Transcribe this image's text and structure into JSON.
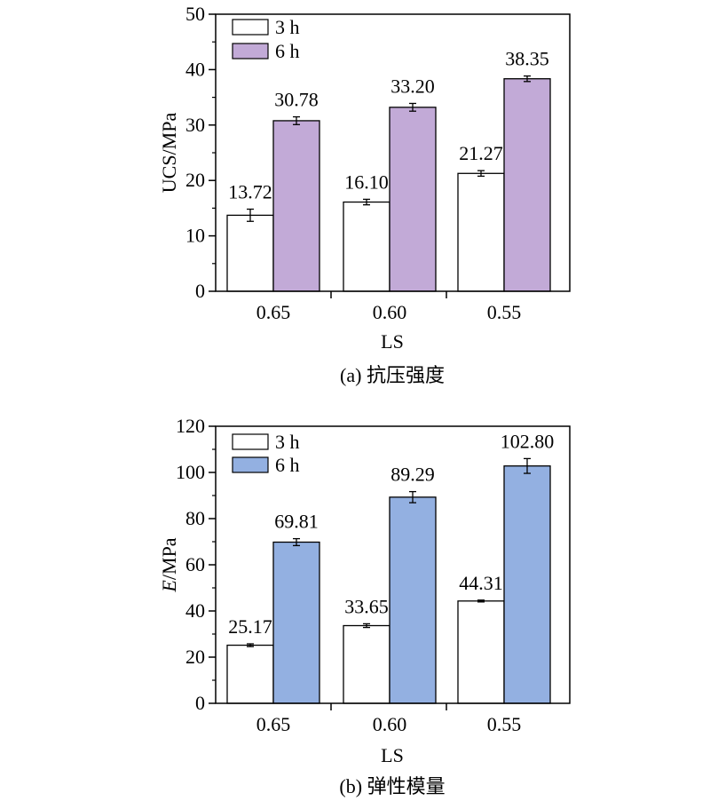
{
  "chart_data": [
    {
      "type": "bar",
      "categories": [
        "0.65",
        "0.60",
        "0.55"
      ],
      "series": [
        {
          "name": "3 h",
          "values": [
            13.72,
            16.1,
            21.27
          ],
          "labels": [
            "13.72",
            "16.10",
            "21.27"
          ],
          "errors": [
            1.1,
            0.5,
            0.5
          ],
          "color": "#ffffff"
        },
        {
          "name": "6 h",
          "values": [
            30.78,
            33.2,
            38.35
          ],
          "labels": [
            "30.78",
            "33.20",
            "38.35"
          ],
          "errors": [
            0.7,
            0.7,
            0.5
          ],
          "color": "#c2aad7"
        }
      ],
      "xlabel": "LS",
      "ylabel": "UCS/MPa",
      "ylim": [
        0,
        50
      ],
      "yticks": [
        "0",
        "10",
        "20",
        "30",
        "40",
        "50"
      ],
      "legend_position": "top-left",
      "caption": "(a) 抗压强度"
    },
    {
      "type": "bar",
      "categories": [
        "0.65",
        "0.60",
        "0.55"
      ],
      "series": [
        {
          "name": "3 h",
          "values": [
            25.17,
            33.65,
            44.31
          ],
          "labels": [
            "25.17",
            "33.65",
            "44.31"
          ],
          "errors": [
            0.6,
            0.8,
            0.4
          ],
          "color": "#ffffff"
        },
        {
          "name": "6 h",
          "values": [
            69.81,
            89.29,
            102.8
          ],
          "labels": [
            "69.81",
            "89.29",
            "102.80"
          ],
          "errors": [
            1.5,
            2.4,
            3.2
          ],
          "color": "#93b0e1"
        }
      ],
      "xlabel": "LS",
      "ylabel_italic": "E",
      "ylabel_rest": "/MPa",
      "ylim": [
        0,
        120
      ],
      "yticks": [
        "0",
        "20",
        "40",
        "60",
        "80",
        "100",
        "120"
      ],
      "legend_position": "top-left",
      "caption": "(b) 弹性模量"
    }
  ]
}
